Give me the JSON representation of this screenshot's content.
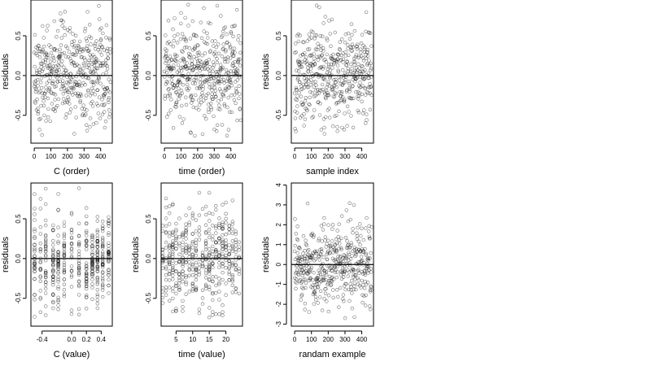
{
  "chart_data": [
    {
      "type": "scatter",
      "xlabel": "C (order)",
      "ylabel": "residuals",
      "xlim": [
        -20,
        470
      ],
      "ylim": [
        -0.85,
        0.95
      ],
      "xticks": [
        0,
        100,
        200,
        300,
        400
      ],
      "yticks": [
        -0.5,
        0.0,
        0.5
      ],
      "ytick_labels": [
        "-0.5",
        "0.0",
        "0.5"
      ],
      "reference_line": 0,
      "x_kind": "order",
      "n": 460
    },
    {
      "type": "scatter",
      "xlabel": "time (order)",
      "ylabel": "residuals",
      "xlim": [
        -20,
        470
      ],
      "ylim": [
        -0.85,
        0.95
      ],
      "xticks": [
        0,
        100,
        200,
        300,
        400
      ],
      "yticks": [
        -0.5,
        0.0,
        0.5
      ],
      "ytick_labels": [
        "-0.5",
        "0.0",
        "0.5"
      ],
      "reference_line": 0,
      "x_kind": "order",
      "n": 460
    },
    {
      "type": "scatter",
      "xlabel": "sample index",
      "ylabel": "residuals",
      "xlim": [
        -20,
        470
      ],
      "ylim": [
        -0.85,
        0.95
      ],
      "xticks": [
        0,
        100,
        200,
        300,
        400
      ],
      "yticks": [
        -0.5,
        0.0,
        0.5
      ],
      "ytick_labels": [
        "-0.5",
        "0.0",
        "0.5"
      ],
      "reference_line": 0,
      "x_kind": "order",
      "n": 460
    },
    {
      "type": "scatter",
      "xlabel": "C (value)",
      "ylabel": "residuals",
      "xlim": [
        -0.55,
        0.55
      ],
      "ylim": [
        -0.85,
        0.95
      ],
      "xticks": [
        -0.4,
        0.0,
        0.2,
        0.4
      ],
      "yticks": [
        -0.5,
        0.0,
        0.5
      ],
      "xtick_labels": [
        "-0.4",
        "0.0",
        "0.2",
        "0.4"
      ],
      "ytick_labels": [
        "-0.5",
        "0.0",
        "0.5"
      ],
      "reference_line": 0,
      "x_kind": "discrete",
      "x_levels": [
        -0.5,
        -0.42,
        -0.35,
        -0.25,
        -0.18,
        -0.1,
        0.0,
        0.1,
        0.2,
        0.28,
        0.35,
        0.42,
        0.5
      ],
      "n": 460
    },
    {
      "type": "scatter",
      "xlabel": "time (value)",
      "ylabel": "residuals",
      "xlim": [
        0.5,
        25
      ],
      "ylim": [
        -0.85,
        0.95
      ],
      "xticks": [
        5,
        10,
        15,
        20
      ],
      "yticks": [
        -0.5,
        0.0,
        0.5
      ],
      "ytick_labels": [
        "-0.5",
        "0.0",
        "0.5"
      ],
      "reference_line": 0,
      "x_kind": "discrete",
      "x_levels": [
        1,
        2,
        3,
        4,
        5,
        6,
        7,
        8,
        9,
        10,
        11,
        12,
        13,
        14,
        15,
        16,
        17,
        18,
        19,
        20,
        21,
        22,
        23,
        24
      ],
      "n": 460
    },
    {
      "type": "scatter",
      "xlabel": "randam example",
      "ylabel": "residuals",
      "xlim": [
        -20,
        470
      ],
      "ylim": [
        -3.1,
        4.1
      ],
      "xticks": [
        0,
        100,
        200,
        300,
        400
      ],
      "yticks": [
        -3,
        -2,
        -1,
        0,
        1,
        2,
        3,
        4
      ],
      "reference_line": 0,
      "x_kind": "order",
      "n": 460
    }
  ]
}
